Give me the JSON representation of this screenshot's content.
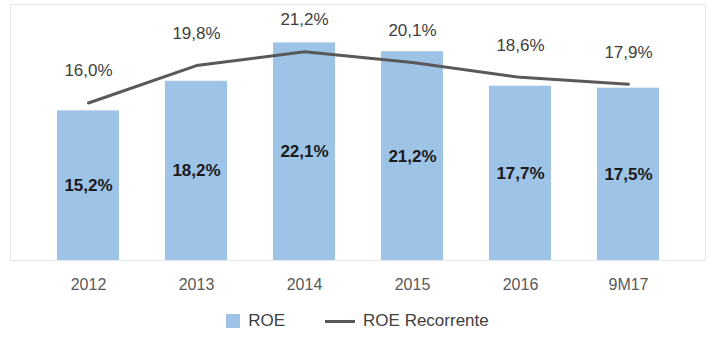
{
  "chart_data": {
    "type": "bar",
    "categories": [
      "2012",
      "2013",
      "2014",
      "2015",
      "2016",
      "9M17"
    ],
    "series": [
      {
        "name": "ROE",
        "type": "bar",
        "color": "#9dc3e6",
        "values": [
          15.2,
          18.2,
          22.1,
          21.2,
          17.7,
          17.5
        ],
        "value_labels": [
          "15,2%",
          "18,2%",
          "22,1%",
          "21,2%",
          "17,7%",
          "17,5%"
        ]
      },
      {
        "name": "ROE Recorrente",
        "type": "line",
        "color": "#595959",
        "values": [
          16.0,
          19.8,
          21.2,
          20.1,
          18.6,
          17.9
        ],
        "value_labels": [
          "16,0%",
          "19,8%",
          "21,2%",
          "20,1%",
          "18,6%",
          "17,9%"
        ]
      }
    ],
    "ylim": [
      0,
      26
    ],
    "yticks": [],
    "data_labels": true,
    "tick_labels": "x",
    "legend": "bottom",
    "grid": false
  }
}
